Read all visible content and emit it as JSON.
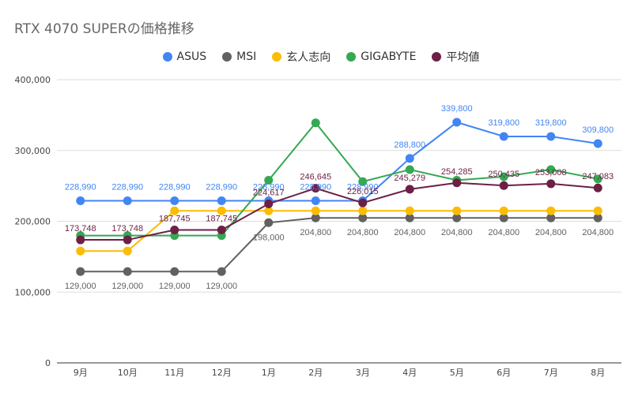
{
  "chart_data": {
    "type": "line",
    "title": "RTX 4070 SUPERの価格推移",
    "categories": [
      "9月",
      "10月",
      "11月",
      "12月",
      "1月",
      "2月",
      "3月",
      "4月",
      "5月",
      "6月",
      "7月",
      "8月"
    ],
    "ylim": [
      0,
      400000
    ],
    "yticks": [
      0,
      100000,
      200000,
      300000,
      400000
    ],
    "ytick_labels": [
      "0",
      "100,000",
      "200,000",
      "300,000",
      "400,000"
    ],
    "grid": true,
    "legend_position": "top",
    "series": [
      {
        "name": "ASUS",
        "color": "#4285f4",
        "values": [
          228990,
          228990,
          228990,
          228990,
          228990,
          228990,
          228990,
          288800,
          339800,
          319800,
          319800,
          309800
        ],
        "labels": [
          "228,990",
          "228,990",
          "228,990",
          "228,990",
          "228,990",
          "228,990",
          "228,990",
          "288,800",
          "339,800",
          "319,800",
          "319,800",
          "309,800"
        ]
      },
      {
        "name": "MSI",
        "color": "#616161",
        "values": [
          129000,
          129000,
          129000,
          129000,
          198000,
          204800,
          204800,
          204800,
          204800,
          204800,
          204800,
          204800
        ],
        "labels": [
          "129,000",
          "129,000",
          "129,000",
          "129,000",
          "198,000",
          "204,800",
          "204,800",
          "204,800",
          "204,800",
          "204,800",
          "204,800",
          "204,800"
        ]
      },
      {
        "name": "玄人志向",
        "color": "#fbbc04",
        "values": [
          158000,
          158000,
          214800,
          214800,
          214800,
          214800,
          214800,
          214800,
          214800,
          214800,
          214800,
          214800
        ],
        "labels": []
      },
      {
        "name": "GIGABYTE",
        "color": "#34a853",
        "values": [
          179800,
          179800,
          179800,
          179800,
          258000,
          339000,
          256000,
          273000,
          258000,
          263000,
          273000,
          259800
        ],
        "labels": []
      },
      {
        "name": "平均値",
        "color": "#6d1f45",
        "values": [
          173748,
          173748,
          187745,
          187745,
          224617,
          246645,
          226015,
          245279,
          254285,
          250435,
          253008,
          247083
        ],
        "labels": [
          "173,748",
          "173,748",
          "187,745",
          "187,745",
          "224,617",
          "246,645",
          "226,015",
          "245,279",
          "254,285",
          "250,435",
          "253,008",
          "247,083"
        ]
      }
    ]
  }
}
